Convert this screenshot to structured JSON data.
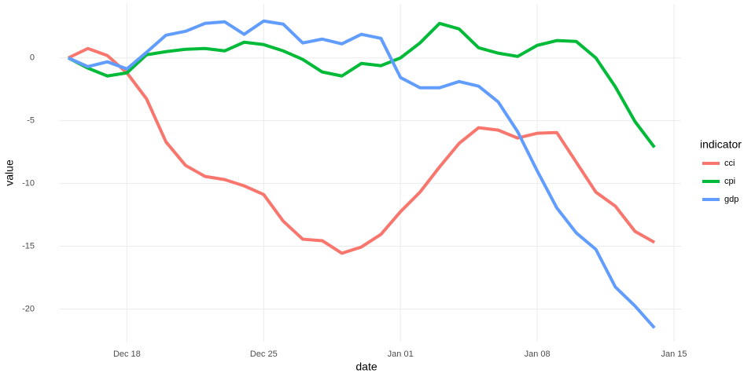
{
  "chart_data": {
    "type": "line",
    "x_label": "date",
    "y_label": "value",
    "legend_title": "indicator",
    "legend": "right",
    "grid": true,
    "x": [
      "Dec 15",
      "Dec 16",
      "Dec 17",
      "Dec 18",
      "Dec 19",
      "Dec 20",
      "Dec 21",
      "Dec 22",
      "Dec 23",
      "Dec 24",
      "Dec 25",
      "Dec 26",
      "Dec 27",
      "Dec 28",
      "Dec 29",
      "Dec 30",
      "Dec 31",
      "Jan 01",
      "Jan 02",
      "Jan 03",
      "Jan 04",
      "Jan 05",
      "Jan 06",
      "Jan 07",
      "Jan 08",
      "Jan 09",
      "Jan 10",
      "Jan 11",
      "Jan 12",
      "Jan 13",
      "Jan 14"
    ],
    "xlim": [
      "Dec 14",
      "Jan 15"
    ],
    "xticks": [
      "Dec 18",
      "Dec 25",
      "Jan 01",
      "Jan 08",
      "Jan 15"
    ],
    "ylim": [
      -22.6,
      4.3
    ],
    "yticks": [
      -20,
      -15,
      -10,
      -5,
      0
    ],
    "series": [
      {
        "name": "cci",
        "color": "#F8766D",
        "values": [
          0,
          0.75,
          0.19,
          -1.19,
          -3.25,
          -6.69,
          -8.56,
          -9.44,
          -9.69,
          -10.19,
          -10.88,
          -13.0,
          -14.44,
          -14.56,
          -15.56,
          -15.06,
          -14.06,
          -12.25,
          -10.69,
          -8.69,
          -6.81,
          -5.56,
          -5.75,
          -6.38,
          -6.0,
          -5.94,
          -8.31,
          -10.69,
          -11.81,
          -13.81,
          -14.69
        ]
      },
      {
        "name": "cpi",
        "color": "#00BA38",
        "values": [
          0,
          -0.81,
          -1.44,
          -1.19,
          0.25,
          0.5,
          0.69,
          0.75,
          0.56,
          1.25,
          1.06,
          0.56,
          -0.12,
          -1.12,
          -1.44,
          -0.44,
          -0.62,
          0,
          1.19,
          2.75,
          2.31,
          0.81,
          0.38,
          0.12,
          1.0,
          1.38,
          1.31,
          0,
          -2.31,
          -5.06,
          -7.12
        ]
      },
      {
        "name": "gdp",
        "color": "#619CFF",
        "values": [
          0,
          -0.69,
          -0.31,
          -0.88,
          0.44,
          1.81,
          2.12,
          2.75,
          2.88,
          1.88,
          2.94,
          2.69,
          1.19,
          1.5,
          1.12,
          1.88,
          1.56,
          -1.56,
          -2.38,
          -2.38,
          -1.88,
          -2.25,
          -3.5,
          -5.88,
          -9.0,
          -11.94,
          -13.94,
          -15.25,
          -18.25,
          -19.75,
          -21.5
        ]
      }
    ]
  }
}
